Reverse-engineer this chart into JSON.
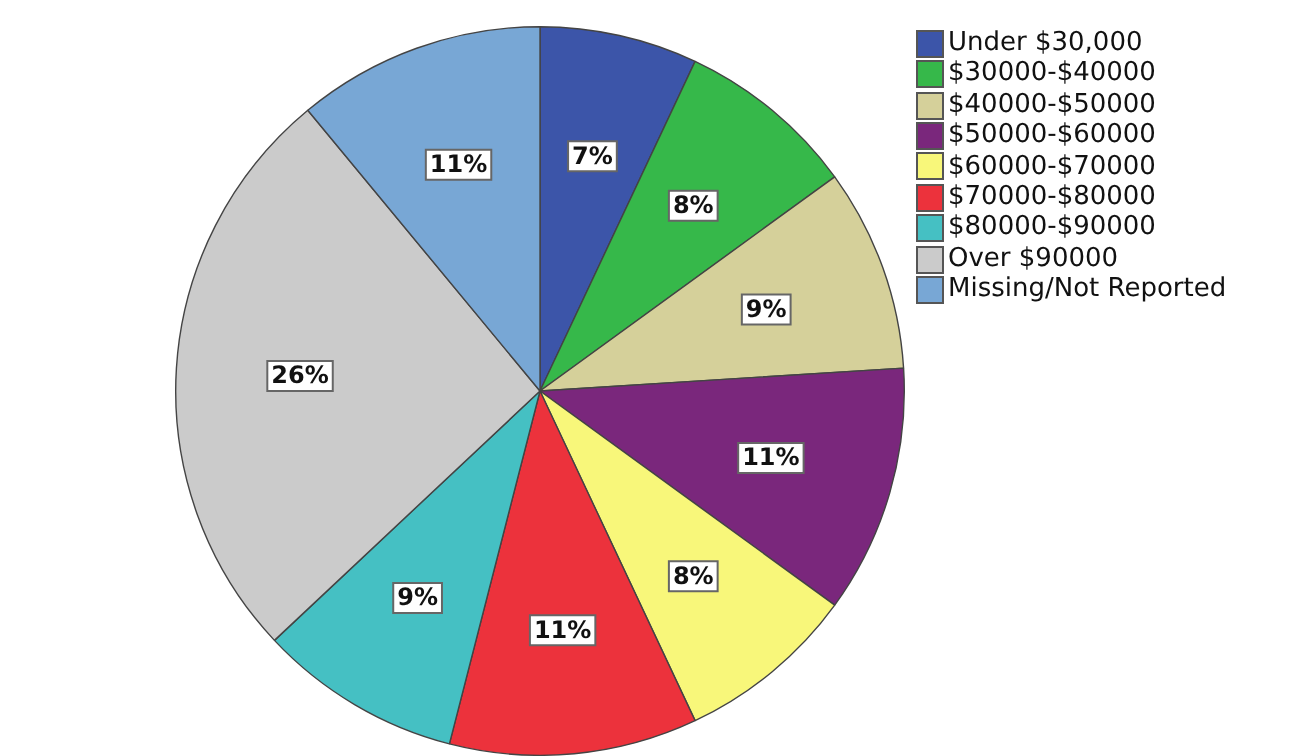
{
  "chart_data": {
    "type": "pie",
    "categories": [
      "Under $30,000",
      "$30000-$40000",
      "$40000-$50000",
      "$50000-$60000",
      "$60000-$70000",
      "$70000-$80000",
      "$80000-$90000",
      "Over $90000",
      "Missing/Not Reported"
    ],
    "values": [
      7,
      8,
      9,
      11,
      8,
      11,
      9,
      26,
      11
    ],
    "value_labels": [
      "7%",
      "8%",
      "9%",
      "11%",
      "8%",
      "11%",
      "9%",
      "26%",
      "11%"
    ],
    "colors": [
      "#3c55a9",
      "#36b84a",
      "#d5d09a",
      "#7a277c",
      "#f8f77a",
      "#ec323c",
      "#45c0c3",
      "#cbcbcb",
      "#78a7d5"
    ],
    "legend": "top right"
  }
}
